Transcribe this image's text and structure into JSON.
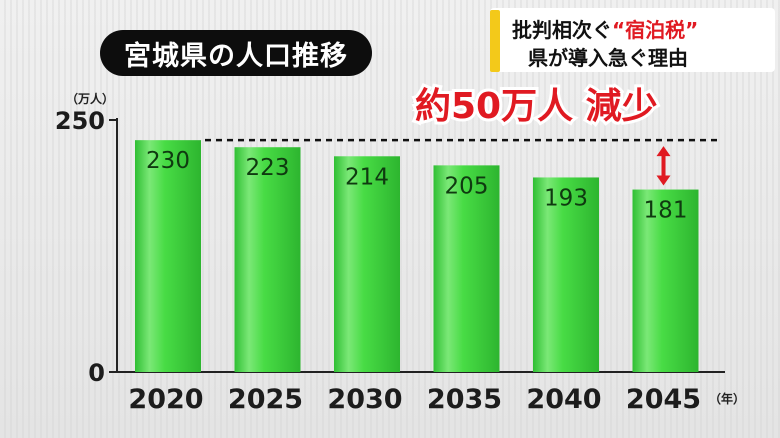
{
  "title": "宮城県の人口推移",
  "headline": {
    "line1_prefix": "批判相次ぐ",
    "line1_accent": "“宿泊税”",
    "line2": "県が導入急ぐ理由"
  },
  "colors": {
    "bar": "#3cd23c",
    "bar_light": "#8ef08a",
    "annotation": "#e01a22",
    "headline_bar": "#f3c91a"
  },
  "chart_data": {
    "type": "bar",
    "categories": [
      "2020",
      "2025",
      "2030",
      "2035",
      "2040",
      "2045"
    ],
    "values": [
      230,
      223,
      214,
      205,
      193,
      181
    ],
    "yunit": "（万人）",
    "xunit": "（年）",
    "ylim": [
      0,
      250
    ],
    "yticks": [
      0,
      250
    ],
    "grid": false,
    "annotation": {
      "text": "約50万人 減少",
      "reference_value": 230
    }
  }
}
